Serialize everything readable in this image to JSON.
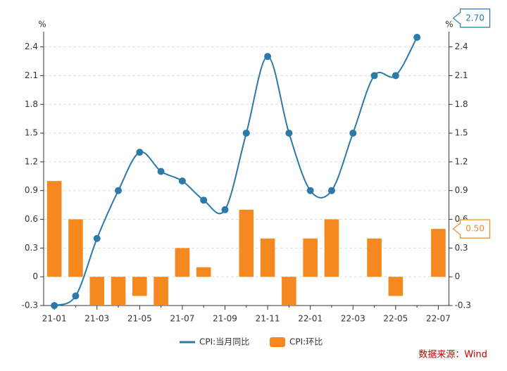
{
  "chart_data": {
    "type": "bar-line",
    "categories": [
      "21-01",
      null,
      "21-03",
      null,
      "21-05",
      null,
      "21-07",
      null,
      "21-09",
      null,
      "21-11",
      null,
      "22-01",
      null,
      "22-03",
      null,
      "22-05",
      null,
      "22-07"
    ],
    "series": [
      {
        "name": "CPI:当月同比",
        "type": "line",
        "color": "#2b7aa8",
        "values": [
          -0.3,
          -0.2,
          0.4,
          0.9,
          1.3,
          1.1,
          1.0,
          0.8,
          0.7,
          1.5,
          2.3,
          1.5,
          0.9,
          0.9,
          1.5,
          2.1,
          2.1,
          2.5,
          null
        ]
      },
      {
        "name": "CPI:环比",
        "type": "bar",
        "color": "#f5891f",
        "values": [
          1.0,
          0.6,
          -0.3,
          -0.3,
          -0.2,
          -0.3,
          0.3,
          0.1,
          0.0,
          0.7,
          0.4,
          -0.3,
          0.4,
          0.6,
          0.0,
          0.4,
          -0.2,
          0.0,
          0.5
        ]
      }
    ],
    "ylim": [
      -0.3,
      2.5
    ],
    "yticks": [
      -0.3,
      0,
      0.3,
      0.6,
      0.9,
      1.2,
      1.5,
      1.8,
      2.1,
      2.4
    ],
    "y_label": "%",
    "y2_label": "%",
    "annotations": [
      {
        "text": "2.70",
        "value": 2.7,
        "color": "#2b7aa8"
      },
      {
        "text": "0.50",
        "value": 0.5,
        "color": "#f5891f"
      }
    ],
    "source": "数据来源：Wind",
    "grid": true
  }
}
